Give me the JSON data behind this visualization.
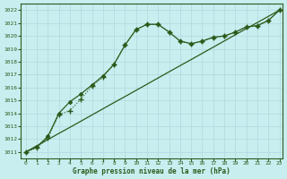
{
  "x": [
    0,
    1,
    2,
    3,
    4,
    5,
    6,
    7,
    8,
    9,
    10,
    11,
    12,
    13,
    14,
    15,
    16,
    17,
    18,
    19,
    20,
    21,
    22,
    23
  ],
  "line_dotted": [
    1011.0,
    1011.3,
    1012.1,
    1013.9,
    1014.2,
    1015.1,
    1016.1,
    1016.8,
    1017.8,
    1019.3,
    1020.5,
    1020.9,
    1020.9,
    1020.3,
    1019.6,
    1019.4,
    1019.6,
    1019.9,
    1020.0,
    1020.3,
    1020.7,
    1020.8,
    1021.2,
    1022.0
  ],
  "line_solid_curve": [
    1011.0,
    1011.4,
    1012.2,
    1014.0,
    1014.9,
    1015.5,
    1016.2,
    1016.9,
    1017.8,
    1019.3,
    1020.5,
    1020.9,
    1020.9,
    1020.3,
    1019.6,
    1019.4,
    1019.6,
    1019.9,
    1020.0,
    1020.3,
    1020.7,
    1020.8,
    1021.2,
    1022.0
  ],
  "line_straight": [
    1011.0,
    1011.48,
    1011.96,
    1012.44,
    1012.91,
    1013.39,
    1013.87,
    1014.35,
    1014.83,
    1015.3,
    1015.78,
    1016.26,
    1016.74,
    1017.22,
    1017.7,
    1018.17,
    1018.65,
    1019.13,
    1019.61,
    1020.09,
    1020.57,
    1021.04,
    1021.52,
    1022.0
  ],
  "line_color": "#2d5a1b",
  "bg_color": "#c8eef0",
  "grid_color": "#b0d8dc",
  "text_color": "#2d5a1b",
  "xlabel": "Graphe pression niveau de la mer (hPa)",
  "xlim": [
    -0.5,
    23.3
  ],
  "ylim": [
    1010.5,
    1022.5
  ],
  "yticks": [
    1011,
    1012,
    1013,
    1014,
    1015,
    1016,
    1017,
    1018,
    1019,
    1020,
    1021,
    1022
  ],
  "xticks": [
    0,
    1,
    2,
    3,
    4,
    5,
    6,
    7,
    8,
    9,
    10,
    11,
    12,
    13,
    14,
    15,
    16,
    17,
    18,
    19,
    20,
    21,
    22,
    23
  ]
}
